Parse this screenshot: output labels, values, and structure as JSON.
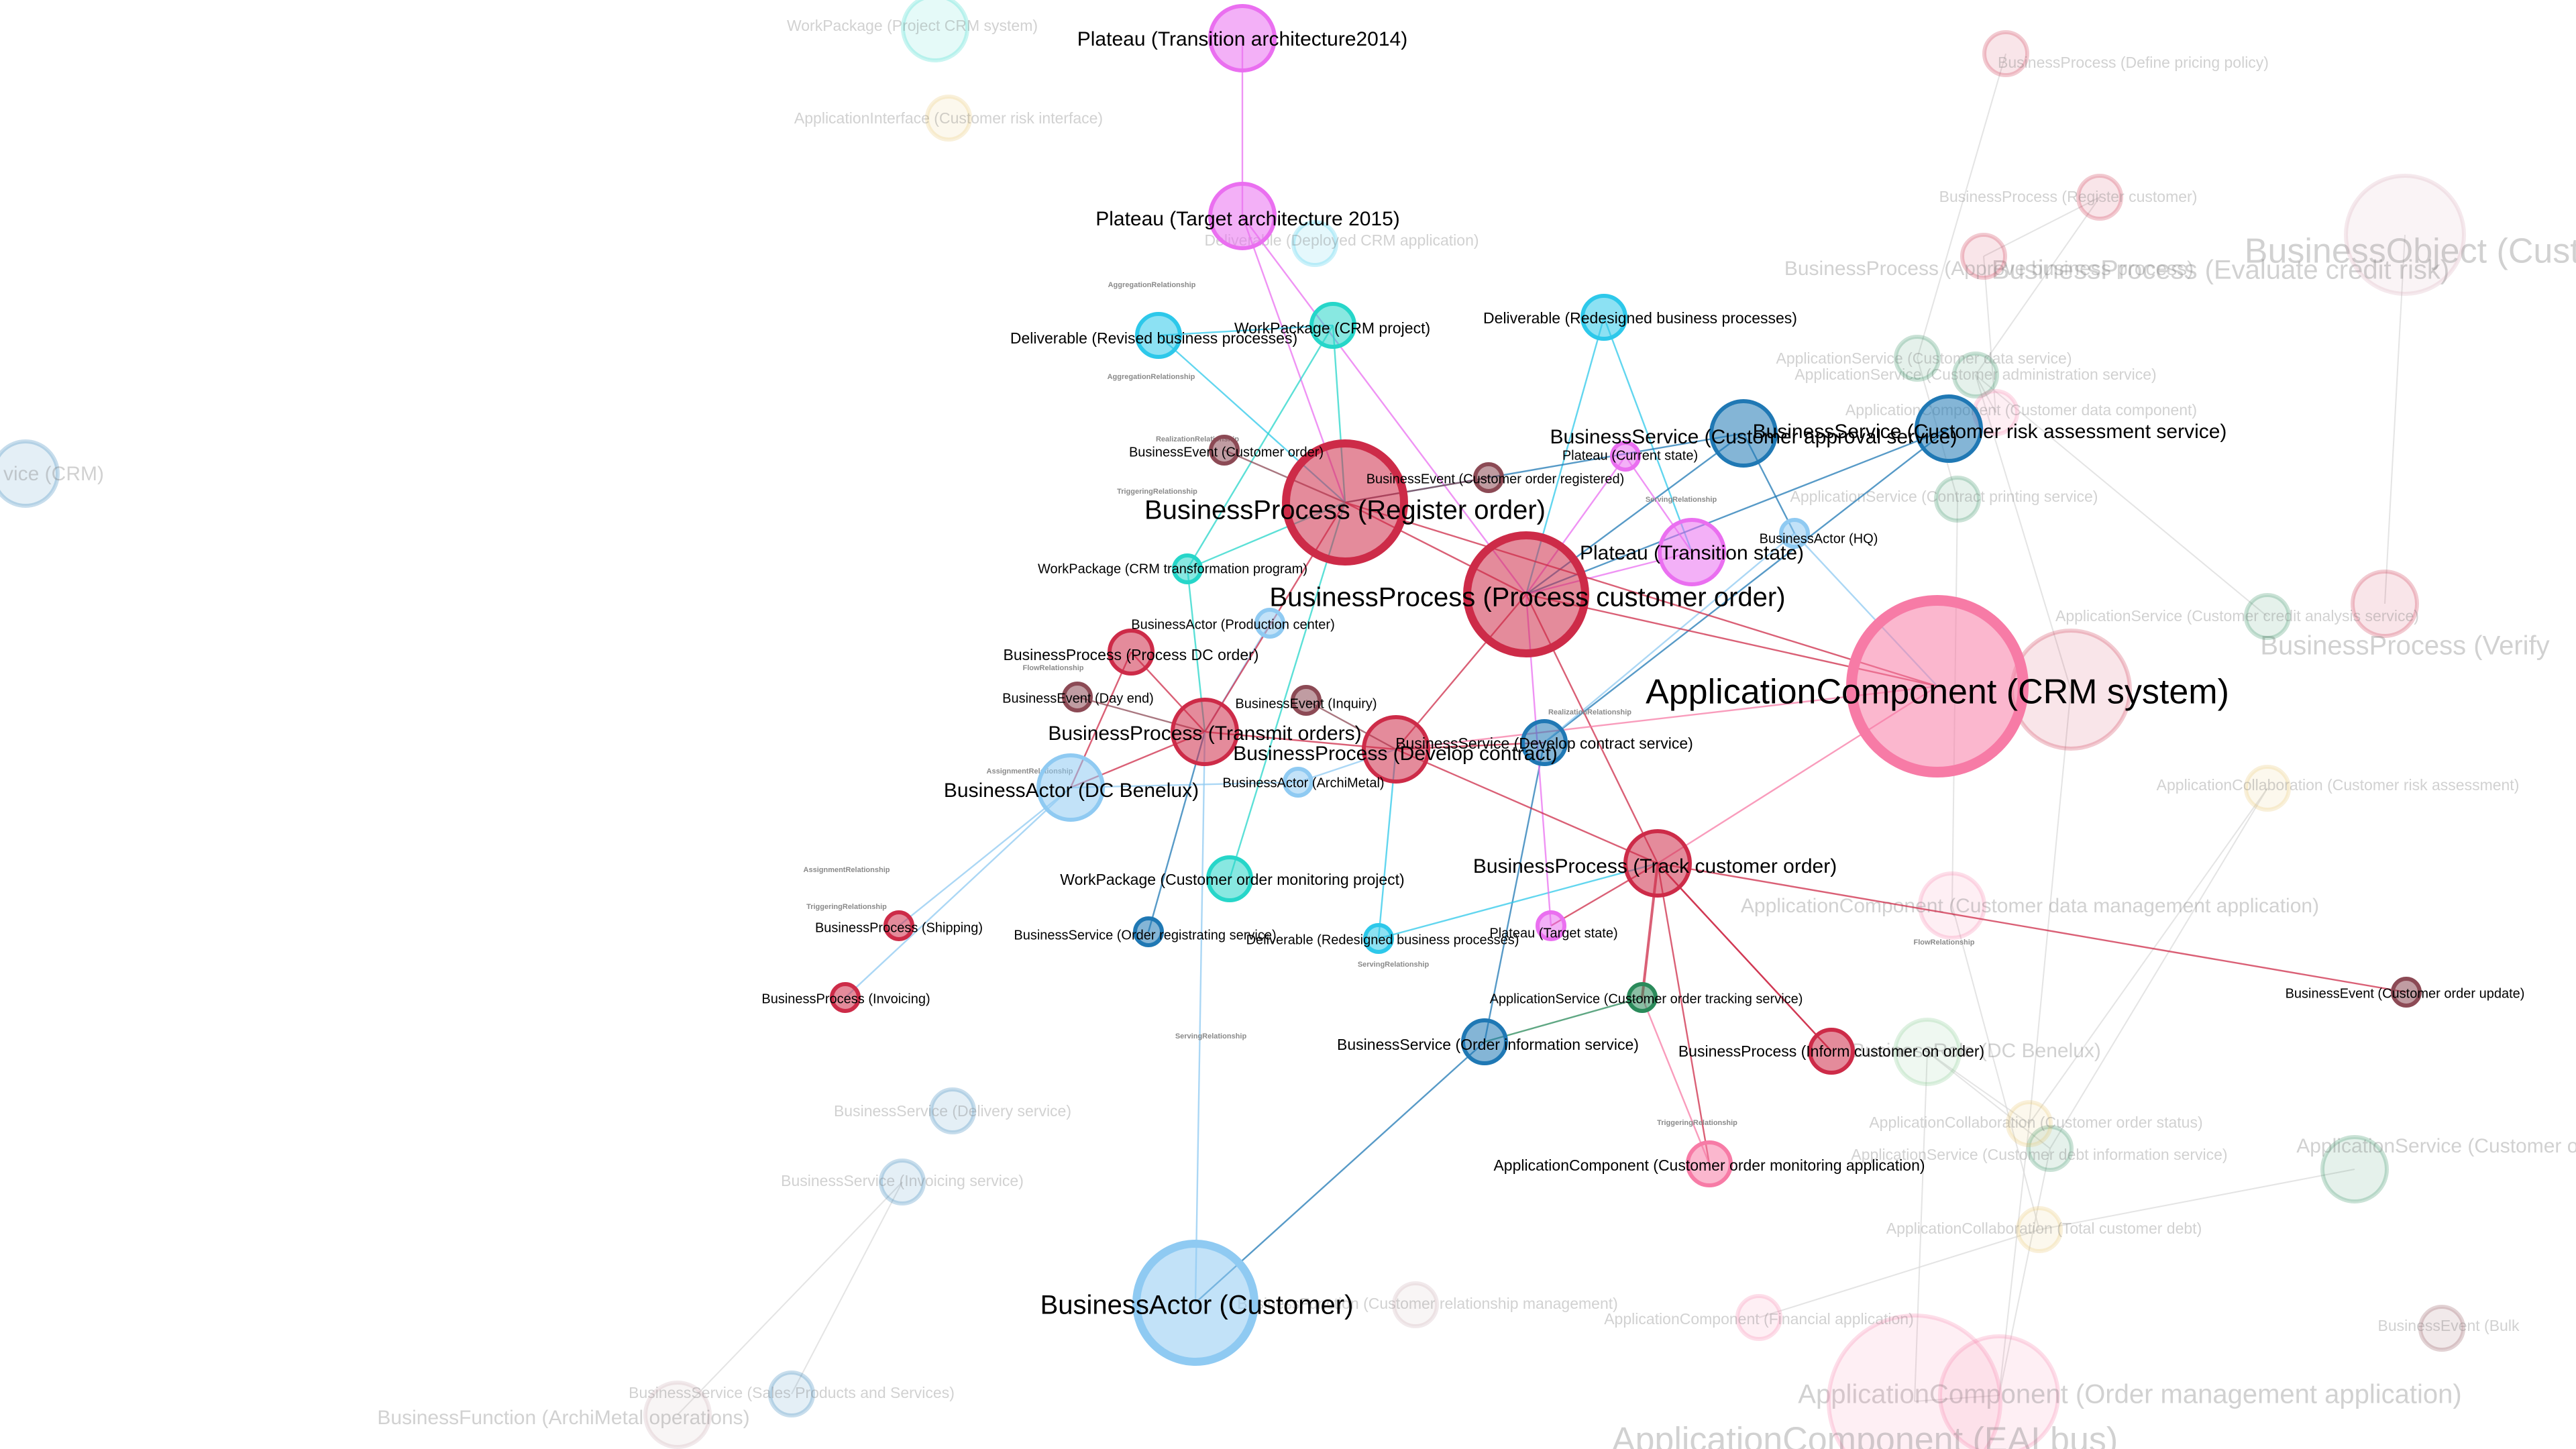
{
  "colors": {
    "BusinessProcess": "#cd2b48",
    "ApplicationComponent": "#f77ba6",
    "BusinessService": "#1f78b4",
    "BusinessActor": "#8fcaf2",
    "WorkPackage": "#26d6c9",
    "Deliverable": "#2dc8ea",
    "Plateau": "#ea6ff0",
    "BusinessEvent": "#8c4a55",
    "ApplicationService": "#2a8a5a",
    "BusinessObject": "#d8a7b6",
    "BusinessFunction": "#c9a9b0",
    "ApplicationInterface": "#e6c36a",
    "ApplicationCollaboration": "#e6c36a",
    "BusinessRole": "#7fc98c"
  },
  "nodes": [
    {
      "id": "n1",
      "label": "Plateau (Transition architecture2014)",
      "type": "Plateau",
      "size": "m"
    },
    {
      "id": "n2",
      "label": "Plateau (Target architecture 2015)",
      "type": "Plateau",
      "size": "m"
    },
    {
      "id": "n3",
      "label": "Deliverable (Revised business processes)",
      "type": "Deliverable",
      "size": "s"
    },
    {
      "id": "n4",
      "label": "WorkPackage (CRM project)",
      "type": "WorkPackage",
      "size": "s"
    },
    {
      "id": "n5",
      "label": "Deliverable (Redesigned business processes)",
      "type": "Deliverable",
      "size": "s"
    },
    {
      "id": "n6",
      "label": "BusinessService (Customer approval service)",
      "type": "BusinessService",
      "size": "m"
    },
    {
      "id": "n7",
      "label": "BusinessService (Customer risk assessment service)",
      "type": "BusinessService",
      "size": "m"
    },
    {
      "id": "n8",
      "label": "Plateau (Current state)",
      "type": "Plateau",
      "size": "xs"
    },
    {
      "id": "n9",
      "label": "BusinessEvent (Customer order)",
      "type": "BusinessEvent",
      "size": "xs"
    },
    {
      "id": "n10",
      "label": "BusinessEvent (Customer order registered)",
      "type": "BusinessEvent",
      "size": "xs"
    },
    {
      "id": "n11",
      "label": "BusinessProcess (Register order)",
      "type": "BusinessProcess",
      "size": "l"
    },
    {
      "id": "n12",
      "label": "Plateau (Transition state)",
      "type": "Plateau",
      "size": "m"
    },
    {
      "id": "n13",
      "label": "BusinessActor (HQ)",
      "type": "BusinessActor",
      "size": "xs"
    },
    {
      "id": "n14",
      "label": "WorkPackage (CRM transformation program)",
      "type": "WorkPackage",
      "size": "xs"
    },
    {
      "id": "n15",
      "label": "BusinessProcess (Process customer order)",
      "type": "BusinessProcess",
      "size": "l"
    },
    {
      "id": "n16",
      "label": "BusinessActor (Production center)",
      "type": "BusinessActor",
      "size": "xs"
    },
    {
      "id": "n17",
      "label": "BusinessProcess (Process DC order)",
      "type": "BusinessProcess",
      "size": "s"
    },
    {
      "id": "n18",
      "label": "ApplicationComponent (CRM system)",
      "type": "ApplicationComponent",
      "size": "xl"
    },
    {
      "id": "n19",
      "label": "BusinessEvent (Day end)",
      "type": "BusinessEvent",
      "size": "xs"
    },
    {
      "id": "n20",
      "label": "BusinessEvent (Inquiry)",
      "type": "BusinessEvent",
      "size": "xs"
    },
    {
      "id": "n21",
      "label": "BusinessProcess (Transmit orders)",
      "type": "BusinessProcess",
      "size": "m"
    },
    {
      "id": "n22",
      "label": "BusinessProcess (Develop contract)",
      "type": "BusinessProcess",
      "size": "m"
    },
    {
      "id": "n23",
      "label": "BusinessService (Develop contract service)",
      "type": "BusinessService",
      "size": "s"
    },
    {
      "id": "n24",
      "label": "BusinessActor (DC Benelux)",
      "type": "BusinessActor",
      "size": "m"
    },
    {
      "id": "n25",
      "label": "BusinessActor (ArchiMetal)",
      "type": "BusinessActor",
      "size": "xs"
    },
    {
      "id": "n26",
      "label": "BusinessProcess (Track customer order)",
      "type": "BusinessProcess",
      "size": "m"
    },
    {
      "id": "n27",
      "label": "WorkPackage (Customer order monitoring project)",
      "type": "WorkPackage",
      "size": "s"
    },
    {
      "id": "n28",
      "label": "BusinessProcess (Shipping)",
      "type": "BusinessProcess",
      "size": "xs"
    },
    {
      "id": "n29",
      "label": "BusinessService (Order registrating service)",
      "type": "BusinessService",
      "size": "xs"
    },
    {
      "id": "n30",
      "label": "Deliverable (Redesigned business processes)",
      "type": "Deliverable",
      "size": "xs"
    },
    {
      "id": "n31",
      "label": "Plateau (Target state)",
      "type": "Plateau",
      "size": "xs"
    },
    {
      "id": "n32",
      "label": "BusinessProcess (Invoicing)",
      "type": "BusinessProcess",
      "size": "xs"
    },
    {
      "id": "n33",
      "label": "ApplicationService (Customer order tracking service)",
      "type": "ApplicationService",
      "size": "xs"
    },
    {
      "id": "n34",
      "label": "BusinessService (Order information service)",
      "type": "BusinessService",
      "size": "s"
    },
    {
      "id": "n35",
      "label": "BusinessProcess (Inform customer on order)",
      "type": "BusinessProcess",
      "size": "s"
    },
    {
      "id": "n36",
      "label": "BusinessEvent (Customer order update)",
      "type": "BusinessEvent",
      "size": "xs"
    },
    {
      "id": "n37",
      "label": "ApplicationComponent (Customer order monitoring application)",
      "type": "ApplicationComponent",
      "size": "s"
    },
    {
      "id": "n38",
      "label": "BusinessActor (Customer)",
      "type": "BusinessActor",
      "size": "l"
    }
  ],
  "edges": [
    [
      "n1",
      "n2"
    ],
    [
      "n2",
      "n11"
    ],
    [
      "n2",
      "n15"
    ],
    [
      "n3",
      "n11"
    ],
    [
      "n3",
      "n4"
    ],
    [
      "n4",
      "n11"
    ],
    [
      "n4",
      "n14"
    ],
    [
      "n5",
      "n15"
    ],
    [
      "n5",
      "n12"
    ],
    [
      "n6",
      "n11"
    ],
    [
      "n6",
      "n15"
    ],
    [
      "n7",
      "n15"
    ],
    [
      "n7",
      "n23"
    ],
    [
      "n8",
      "n15"
    ],
    [
      "n9",
      "n11"
    ],
    [
      "n10",
      "n11"
    ],
    [
      "n12",
      "n15"
    ],
    [
      "n12",
      "n8"
    ],
    [
      "n13",
      "n23"
    ],
    [
      "n13",
      "n18"
    ],
    [
      "n14",
      "n11"
    ],
    [
      "n14",
      "n21"
    ],
    [
      "n15",
      "n18"
    ],
    [
      "n15",
      "n22"
    ],
    [
      "n15",
      "n26"
    ],
    [
      "n16",
      "n21"
    ],
    [
      "n17",
      "n21"
    ],
    [
      "n17",
      "n24"
    ],
    [
      "n11",
      "n21"
    ],
    [
      "n11",
      "n18"
    ],
    [
      "n18",
      "n22"
    ],
    [
      "n18",
      "n26"
    ],
    [
      "n19",
      "n21"
    ],
    [
      "n20",
      "n22"
    ],
    [
      "n21",
      "n22"
    ],
    [
      "n21",
      "n24"
    ],
    [
      "n22",
      "n23"
    ],
    [
      "n23",
      "n34"
    ],
    [
      "n24",
      "n28"
    ],
    [
      "n24",
      "n32"
    ],
    [
      "n25",
      "n22"
    ],
    [
      "n25",
      "n24"
    ],
    [
      "n26",
      "n33"
    ],
    [
      "n26",
      "n35"
    ],
    [
      "n26",
      "n36"
    ],
    [
      "n26",
      "n31"
    ],
    [
      "n26",
      "n37"
    ],
    [
      "n27",
      "n11"
    ],
    [
      "n29",
      "n21"
    ],
    [
      "n30",
      "n26"
    ],
    [
      "n30",
      "n22"
    ],
    [
      "n31",
      "n15"
    ],
    [
      "n33",
      "n34"
    ],
    [
      "n34",
      "n38"
    ],
    [
      "n35",
      "n26"
    ],
    [
      "n37",
      "n33"
    ],
    [
      "n38",
      "n21"
    ],
    [
      "n11",
      "n15"
    ],
    [
      "n22",
      "n26"
    ],
    [
      "n6",
      "n13"
    ]
  ],
  "edge_labels": [
    {
      "text": "AggregationRelationship",
      "near": "n3"
    },
    {
      "text": "AggregationRelationship",
      "near": "n14"
    },
    {
      "text": "RealizationRelationship",
      "near": "n9"
    },
    {
      "text": "TriggeringRelationship",
      "near": "n11"
    },
    {
      "text": "FlowRelationship",
      "near": "n17"
    },
    {
      "text": "AssignmentRelationship",
      "near": "n24"
    },
    {
      "text": "AssignmentRelationship",
      "near": "n28"
    },
    {
      "text": "TriggeringRelationship",
      "near": "n12"
    },
    {
      "text": "ServingRelationship",
      "near": "n23"
    },
    {
      "text": "RealizationRelationship",
      "near": "n30"
    },
    {
      "text": "ServingRelationship",
      "near": "n34"
    },
    {
      "text": "ServingRelationship",
      "near": "n37"
    },
    {
      "text": "TriggeringRelationship",
      "near": "n36"
    },
    {
      "text": "FlowRelationship",
      "near": "n30"
    }
  ],
  "faded_nodes": [
    {
      "label": "BusinessObject (Customer",
      "type": "BusinessObject",
      "size": "l",
      "text": "xl"
    },
    {
      "label": "BusinessProcess (Evaluate credit risk)",
      "type": "BusinessProcess",
      "size": "l",
      "text": "l"
    },
    {
      "label": "BusinessProcess (Approve business process)",
      "type": "BusinessProcess",
      "size": "s",
      "text": "m"
    },
    {
      "label": "BusinessProcess (Verify",
      "type": "BusinessProcess",
      "size": "m",
      "text": "l"
    },
    {
      "label": "ApplicationComponent (Order management application)",
      "type": "ApplicationComponent",
      "size": "l",
      "text": "l"
    },
    {
      "label": "ApplicationComponent (EAI bus)",
      "type": "ApplicationComponent",
      "size": "xl",
      "text": "xl"
    },
    {
      "label": "ApplicationComponent (Customer data management application)",
      "type": "ApplicationComponent",
      "size": "m",
      "text": "m"
    },
    {
      "label": "BusinessRole (DC Benelux)",
      "type": "BusinessRole",
      "size": "m",
      "text": "m"
    },
    {
      "label": "BusinessFunction (ArchiMetal operations)",
      "type": "BusinessFunction",
      "size": "m",
      "text": "m"
    },
    {
      "label": "ApplicationService (Customer order",
      "type": "ApplicationService",
      "size": "m",
      "text": "m"
    },
    {
      "label": "vice (CRM)",
      "type": "BusinessService",
      "size": "m",
      "text": "m"
    },
    {
      "label": "WorkPackage (Project CRM system)",
      "type": "WorkPackage",
      "size": "m",
      "text": "s"
    },
    {
      "label": "BusinessProcess (Define pricing policy)",
      "type": "BusinessProcess",
      "size": "s",
      "text": "s"
    },
    {
      "label": "BusinessProcess (Register customer)",
      "type": "BusinessProcess",
      "size": "s",
      "text": "s"
    },
    {
      "label": "BusinessEvent (Bulk",
      "type": "BusinessEvent",
      "size": "s",
      "text": "s"
    },
    {
      "label": "BusinessService (Delivery service)",
      "type": "BusinessService",
      "size": "s",
      "text": "s"
    },
    {
      "label": "BusinessService (Invoicing service)",
      "type": "BusinessService",
      "size": "s",
      "text": "s"
    },
    {
      "label": "ApplicationService (Customer administration service)",
      "type": "ApplicationService",
      "size": "s",
      "text": "s"
    },
    {
      "label": "ApplicationService (Contract printing service)",
      "type": "ApplicationService",
      "size": "s",
      "text": "s"
    },
    {
      "label": "ApplicationService (Customer credit analysis service)",
      "type": "ApplicationService",
      "size": "s",
      "text": "s"
    },
    {
      "label": "ApplicationInterface (Customer risk interface)",
      "type": "ApplicationInterface",
      "size": "s",
      "text": "s"
    },
    {
      "label": "Deliverable (Deployed CRM application)",
      "type": "Deliverable",
      "size": "s",
      "text": "s"
    },
    {
      "label": "ApplicationCollaboration (Customer risk assessment)",
      "type": "ApplicationCollaboration",
      "size": "s",
      "text": "s"
    },
    {
      "label": "ApplicationService (Customer debt information service)",
      "type": "ApplicationService",
      "size": "s",
      "text": "s"
    },
    {
      "label": "ApplicationComponent (Financial application)",
      "type": "ApplicationComponent",
      "size": "s",
      "text": "s"
    },
    {
      "label": "BusinessFunction (Customer relationship management)",
      "type": "BusinessFunction",
      "size": "s",
      "text": "s"
    },
    {
      "label": "BusinessService (Sales Products and Services)",
      "type": "BusinessService",
      "size": "s",
      "text": "s"
    },
    {
      "label": "ApplicationService (Customer data service)",
      "type": "ApplicationService",
      "size": "s",
      "text": "s"
    },
    {
      "label": "ApplicationComponent (Customer data component)",
      "type": "ApplicationComponent",
      "size": "s",
      "text": "s"
    },
    {
      "label": "ApplicationCollaboration (Customer order status)",
      "type": "ApplicationCollaboration",
      "size": "s",
      "text": "s"
    },
    {
      "label": "ApplicationCollaboration (Total customer debt)",
      "type": "ApplicationCollaboration",
      "size": "s",
      "text": "s"
    }
  ]
}
